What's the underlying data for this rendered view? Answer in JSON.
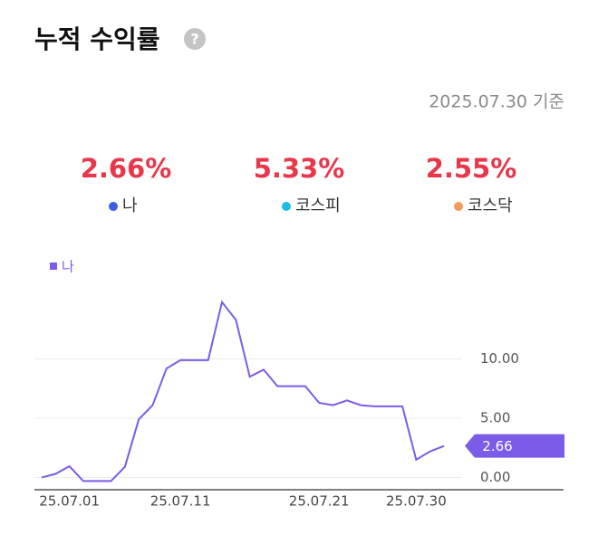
{
  "header": {
    "title": "누적 수익률",
    "help": "?",
    "as_of": "2025.07.30 기준"
  },
  "summary": [
    {
      "value": "2.66%",
      "label": "나",
      "color": "#3d5ce0"
    },
    {
      "value": "5.33%",
      "label": "코스피",
      "color": "#1fbbe8"
    },
    {
      "value": "2.55%",
      "label": "코스닥",
      "color": "#f59a5c"
    }
  ],
  "chart_data": {
    "type": "line",
    "categories": [
      null,
      null,
      "25.07.01",
      null,
      null,
      null,
      null,
      null,
      null,
      null,
      "25.07.11",
      null,
      null,
      null,
      null,
      null,
      null,
      null,
      null,
      null,
      "25.07.21",
      null,
      null,
      null,
      null,
      null,
      null,
      "25.07.30",
      null,
      null
    ],
    "series": [
      {
        "name": "나",
        "color": "#7b5ce8",
        "values": [
          0,
          0.3,
          0.95,
          -0.3,
          -0.3,
          -0.3,
          0.9,
          4.9,
          6.1,
          9.2,
          9.9,
          9.9,
          9.9,
          14.8,
          13.3,
          8.5,
          9.1,
          7.7,
          7.7,
          7.7,
          6.3,
          6.1,
          6.5,
          6.1,
          6.0,
          6.0,
          6.0,
          1.5,
          2.2,
          2.66
        ]
      }
    ],
    "last_value_label": "2.66",
    "ylim": [
      -0.5,
      16
    ],
    "yticks": [
      {
        "value": 0,
        "label": "0.00"
      },
      {
        "value": 5,
        "label": "5.00"
      },
      {
        "value": 10,
        "label": "10.00"
      }
    ],
    "grid": true
  }
}
